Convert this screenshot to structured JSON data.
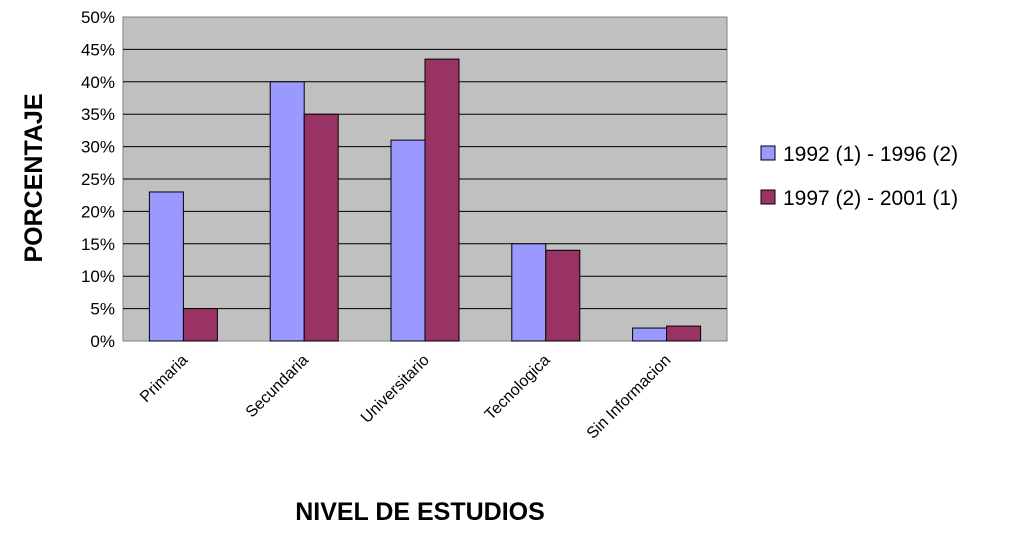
{
  "chart_data": {
    "type": "bar",
    "categories": [
      "Primaria",
      "Secundaria",
      "Universitario",
      "Tecnologica",
      "Sin Informacion"
    ],
    "series": [
      {
        "name": "1992 (1) - 1996 (2)",
        "values": [
          23,
          40,
          31,
          15,
          2
        ],
        "color": "#9999FF"
      },
      {
        "name": "1997 (2) - 2001 (1)",
        "values": [
          5,
          35,
          43.5,
          14,
          2.3
        ],
        "color": "#993366"
      }
    ],
    "xlabel": "NIVEL DE ESTUDIOS",
    "ylabel": "PORCENTAJE",
    "ylim": [
      0,
      50
    ],
    "ytick_step": 5,
    "ytick_labels": [
      "0%",
      "5%",
      "10%",
      "15%",
      "20%",
      "25%",
      "30%",
      "35%",
      "40%",
      "45%",
      "50%"
    ],
    "plot_background": "#C0C0C0",
    "grid": true,
    "legend_position": "right"
  }
}
